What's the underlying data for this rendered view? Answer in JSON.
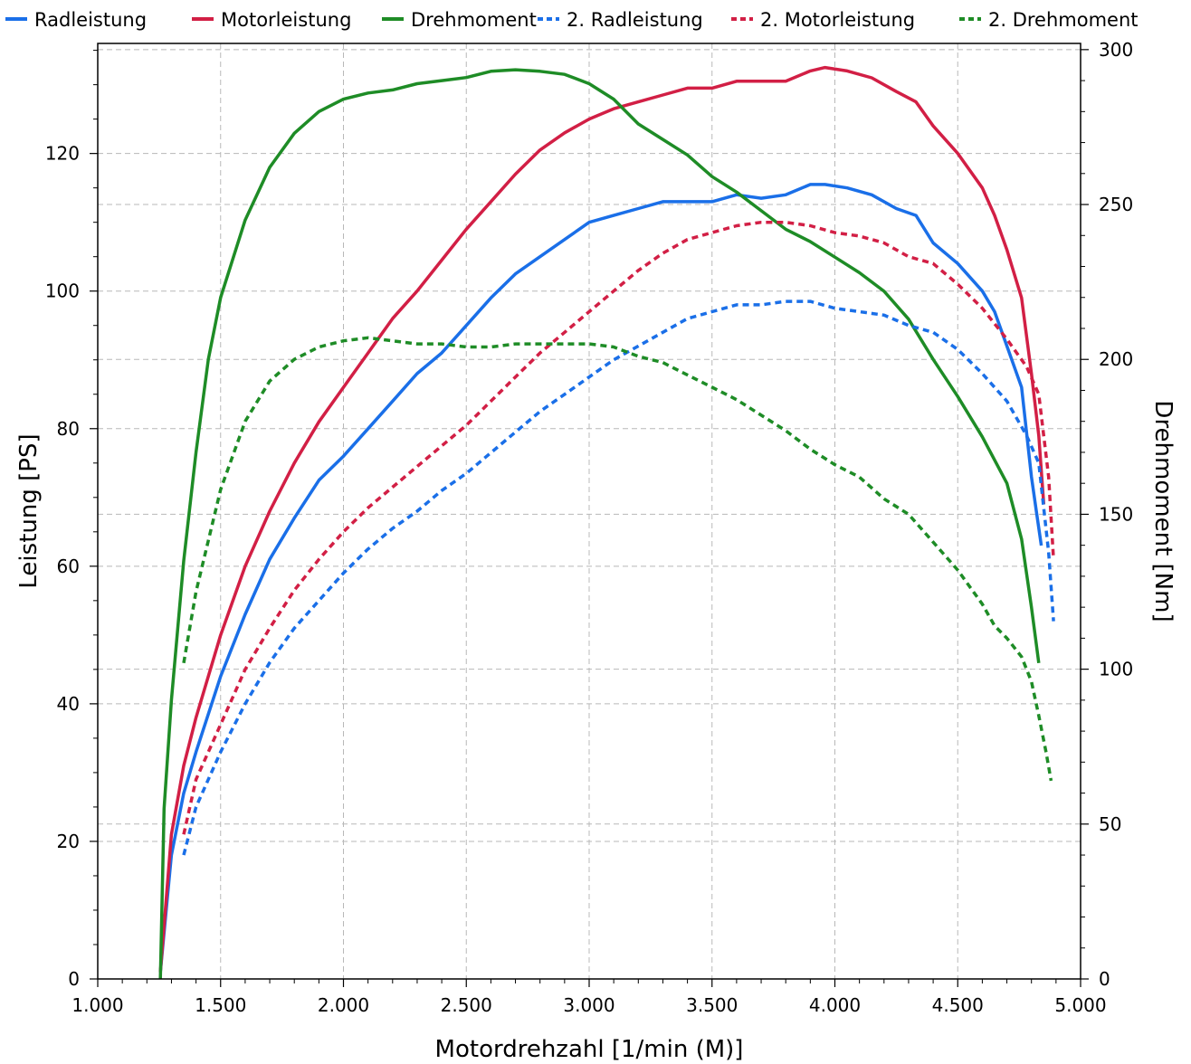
{
  "colors": {
    "radleistung": "#1a6fe8",
    "motorleistung": "#d21f45",
    "drehmoment": "#1e8c26",
    "grid": "#b8b8b8",
    "axis": "#000000"
  },
  "chart_data": {
    "type": "line",
    "xlabel": "Motordrehzahl [1/min (M)]",
    "ylabel": "Leistung [PS]",
    "y2label": "Drehmoment [Nm]",
    "xlim": [
      1000,
      5000
    ],
    "ylim": [
      0,
      136
    ],
    "y2lim": [
      0,
      302
    ],
    "grid": true,
    "legend_position": "top",
    "x_ticks": [
      {
        "value": 1000,
        "label": "1.000"
      },
      {
        "value": 1500,
        "label": "1.500"
      },
      {
        "value": 2000,
        "label": "2.000"
      },
      {
        "value": 2500,
        "label": "2.500"
      },
      {
        "value": 3000,
        "label": "3.000"
      },
      {
        "value": 3500,
        "label": "3.500"
      },
      {
        "value": 4000,
        "label": "4.000"
      },
      {
        "value": 4500,
        "label": "4.500"
      },
      {
        "value": 5000,
        "label": "5.000"
      }
    ],
    "y_ticks": [
      {
        "value": 0,
        "label": "0"
      },
      {
        "value": 20,
        "label": "20"
      },
      {
        "value": 40,
        "label": "40"
      },
      {
        "value": 60,
        "label": "60"
      },
      {
        "value": 80,
        "label": "80"
      },
      {
        "value": 100,
        "label": "100"
      },
      {
        "value": 120,
        "label": "120"
      }
    ],
    "y2_ticks": [
      {
        "value": 0,
        "label": "0"
      },
      {
        "value": 50,
        "label": "50"
      },
      {
        "value": 100,
        "label": "100"
      },
      {
        "value": 150,
        "label": "150"
      },
      {
        "value": 200,
        "label": "200"
      },
      {
        "value": 250,
        "label": "250"
      },
      {
        "value": 300,
        "label": "300"
      }
    ],
    "series": [
      {
        "name": "Radleistung",
        "color_key": "radleistung",
        "dashed": false,
        "axis": "left",
        "points": [
          [
            1255,
            1
          ],
          [
            1300,
            18
          ],
          [
            1350,
            27
          ],
          [
            1400,
            33
          ],
          [
            1500,
            44
          ],
          [
            1600,
            53
          ],
          [
            1700,
            61
          ],
          [
            1800,
            67
          ],
          [
            1900,
            72.5
          ],
          [
            2000,
            76
          ],
          [
            2100,
            80
          ],
          [
            2200,
            84
          ],
          [
            2300,
            88
          ],
          [
            2400,
            91
          ],
          [
            2500,
            95
          ],
          [
            2600,
            99
          ],
          [
            2700,
            102.5
          ],
          [
            2800,
            105
          ],
          [
            2900,
            107.5
          ],
          [
            3000,
            110
          ],
          [
            3100,
            111
          ],
          [
            3200,
            112
          ],
          [
            3300,
            113
          ],
          [
            3400,
            113
          ],
          [
            3500,
            113
          ],
          [
            3600,
            114
          ],
          [
            3700,
            113.5
          ],
          [
            3800,
            114
          ],
          [
            3900,
            115.5
          ],
          [
            3960,
            115.5
          ],
          [
            4050,
            115
          ],
          [
            4150,
            114
          ],
          [
            4250,
            112
          ],
          [
            4330,
            111
          ],
          [
            4400,
            107
          ],
          [
            4500,
            104
          ],
          [
            4600,
            100
          ],
          [
            4650,
            97
          ],
          [
            4700,
            92
          ],
          [
            4760,
            86
          ],
          [
            4800,
            73
          ],
          [
            4820,
            68
          ],
          [
            4840,
            63
          ]
        ]
      },
      {
        "name": "Motorleistung",
        "color_key": "motorleistung",
        "dashed": false,
        "axis": "left",
        "points": [
          [
            1255,
            1
          ],
          [
            1300,
            21
          ],
          [
            1350,
            31
          ],
          [
            1400,
            38
          ],
          [
            1500,
            50
          ],
          [
            1600,
            60
          ],
          [
            1700,
            68
          ],
          [
            1800,
            75
          ],
          [
            1900,
            81
          ],
          [
            2000,
            86
          ],
          [
            2100,
            91
          ],
          [
            2200,
            96
          ],
          [
            2300,
            100
          ],
          [
            2400,
            104.5
          ],
          [
            2500,
            109
          ],
          [
            2600,
            113
          ],
          [
            2700,
            117
          ],
          [
            2800,
            120.5
          ],
          [
            2900,
            123
          ],
          [
            3000,
            125
          ],
          [
            3100,
            126.5
          ],
          [
            3200,
            127.5
          ],
          [
            3300,
            128.5
          ],
          [
            3400,
            129.5
          ],
          [
            3500,
            129.5
          ],
          [
            3600,
            130.5
          ],
          [
            3700,
            130.5
          ],
          [
            3800,
            130.5
          ],
          [
            3900,
            132
          ],
          [
            3960,
            132.5
          ],
          [
            4050,
            132
          ],
          [
            4150,
            131
          ],
          [
            4250,
            129
          ],
          [
            4330,
            127.5
          ],
          [
            4400,
            124
          ],
          [
            4500,
            120
          ],
          [
            4600,
            115
          ],
          [
            4650,
            111
          ],
          [
            4700,
            106
          ],
          [
            4760,
            99
          ],
          [
            4800,
            88
          ],
          [
            4830,
            79
          ],
          [
            4850,
            69
          ]
        ]
      },
      {
        "name": "Drehmoment",
        "color_key": "drehmoment",
        "dashed": false,
        "axis": "right",
        "points": [
          [
            1255,
            0
          ],
          [
            1270,
            55
          ],
          [
            1300,
            90
          ],
          [
            1350,
            135
          ],
          [
            1400,
            170
          ],
          [
            1450,
            200
          ],
          [
            1500,
            220
          ],
          [
            1600,
            245
          ],
          [
            1700,
            262
          ],
          [
            1800,
            273
          ],
          [
            1900,
            280
          ],
          [
            2000,
            284
          ],
          [
            2100,
            286
          ],
          [
            2200,
            287
          ],
          [
            2300,
            289
          ],
          [
            2400,
            290
          ],
          [
            2500,
            291
          ],
          [
            2600,
            293
          ],
          [
            2700,
            293.5
          ],
          [
            2800,
            293
          ],
          [
            2900,
            292
          ],
          [
            3000,
            289
          ],
          [
            3100,
            284
          ],
          [
            3200,
            276
          ],
          [
            3300,
            271
          ],
          [
            3400,
            266
          ],
          [
            3500,
            259
          ],
          [
            3600,
            254
          ],
          [
            3700,
            248
          ],
          [
            3800,
            242
          ],
          [
            3900,
            238
          ],
          [
            4000,
            233
          ],
          [
            4100,
            228
          ],
          [
            4200,
            222
          ],
          [
            4300,
            213
          ],
          [
            4400,
            200
          ],
          [
            4500,
            188
          ],
          [
            4600,
            175
          ],
          [
            4700,
            160
          ],
          [
            4760,
            142
          ],
          [
            4800,
            120
          ],
          [
            4830,
            102
          ]
        ]
      },
      {
        "name": "2. Radleistung",
        "color_key": "radleistung",
        "dashed": true,
        "axis": "left",
        "points": [
          [
            1350,
            18
          ],
          [
            1400,
            25
          ],
          [
            1500,
            33
          ],
          [
            1600,
            40
          ],
          [
            1700,
            46
          ],
          [
            1800,
            51
          ],
          [
            1900,
            55
          ],
          [
            2000,
            59
          ],
          [
            2100,
            62.5
          ],
          [
            2200,
            65.5
          ],
          [
            2300,
            68
          ],
          [
            2400,
            71
          ],
          [
            2500,
            73.5
          ],
          [
            2600,
            76.5
          ],
          [
            2700,
            79.5
          ],
          [
            2800,
            82.5
          ],
          [
            2900,
            85
          ],
          [
            3000,
            87.5
          ],
          [
            3100,
            90
          ],
          [
            3200,
            92
          ],
          [
            3300,
            94
          ],
          [
            3400,
            96
          ],
          [
            3500,
            97
          ],
          [
            3600,
            98
          ],
          [
            3700,
            98
          ],
          [
            3800,
            98.5
          ],
          [
            3900,
            98.5
          ],
          [
            4000,
            97.5
          ],
          [
            4100,
            97
          ],
          [
            4200,
            96.5
          ],
          [
            4300,
            95
          ],
          [
            4400,
            94
          ],
          [
            4500,
            91.5
          ],
          [
            4600,
            88
          ],
          [
            4700,
            84
          ],
          [
            4780,
            79
          ],
          [
            4830,
            75
          ],
          [
            4870,
            62
          ],
          [
            4890,
            52
          ]
        ]
      },
      {
        "name": "2. Motorleistung",
        "color_key": "motorleistung",
        "dashed": true,
        "axis": "left",
        "points": [
          [
            1350,
            21
          ],
          [
            1400,
            29
          ],
          [
            1500,
            37
          ],
          [
            1600,
            45
          ],
          [
            1700,
            51
          ],
          [
            1800,
            56.5
          ],
          [
            1900,
            61
          ],
          [
            2000,
            65
          ],
          [
            2100,
            68.5
          ],
          [
            2200,
            71.5
          ],
          [
            2300,
            74.5
          ],
          [
            2400,
            77.5
          ],
          [
            2500,
            80.5
          ],
          [
            2600,
            84
          ],
          [
            2700,
            87.5
          ],
          [
            2800,
            91
          ],
          [
            2900,
            94
          ],
          [
            3000,
            97
          ],
          [
            3100,
            100
          ],
          [
            3200,
            103
          ],
          [
            3300,
            105.5
          ],
          [
            3400,
            107.5
          ],
          [
            3500,
            108.5
          ],
          [
            3600,
            109.5
          ],
          [
            3700,
            110
          ],
          [
            3800,
            110
          ],
          [
            3900,
            109.5
          ],
          [
            4000,
            108.5
          ],
          [
            4100,
            108
          ],
          [
            4200,
            107
          ],
          [
            4300,
            105
          ],
          [
            4400,
            104
          ],
          [
            4500,
            101
          ],
          [
            4600,
            97.5
          ],
          [
            4700,
            93
          ],
          [
            4780,
            89
          ],
          [
            4830,
            85
          ],
          [
            4870,
            73
          ],
          [
            4890,
            61
          ]
        ]
      },
      {
        "name": "2. Drehmoment",
        "color_key": "drehmoment",
        "dashed": true,
        "axis": "right",
        "points": [
          [
            1350,
            102
          ],
          [
            1400,
            125
          ],
          [
            1500,
            158
          ],
          [
            1600,
            180
          ],
          [
            1700,
            193
          ],
          [
            1800,
            200
          ],
          [
            1900,
            204
          ],
          [
            2000,
            206
          ],
          [
            2100,
            207
          ],
          [
            2200,
            206
          ],
          [
            2300,
            205
          ],
          [
            2400,
            205
          ],
          [
            2500,
            204
          ],
          [
            2600,
            204
          ],
          [
            2700,
            205
          ],
          [
            2800,
            205
          ],
          [
            2900,
            205
          ],
          [
            3000,
            205
          ],
          [
            3100,
            204
          ],
          [
            3200,
            201
          ],
          [
            3300,
            199
          ],
          [
            3400,
            195
          ],
          [
            3500,
            191
          ],
          [
            3600,
            187
          ],
          [
            3700,
            182
          ],
          [
            3800,
            177
          ],
          [
            3900,
            171
          ],
          [
            4000,
            166
          ],
          [
            4100,
            162
          ],
          [
            4200,
            155
          ],
          [
            4300,
            150
          ],
          [
            4400,
            141
          ],
          [
            4500,
            132
          ],
          [
            4600,
            121
          ],
          [
            4650,
            114
          ],
          [
            4700,
            110
          ],
          [
            4760,
            104
          ],
          [
            4800,
            96
          ],
          [
            4830,
            85
          ],
          [
            4860,
            73
          ],
          [
            4880,
            64
          ]
        ]
      }
    ]
  }
}
